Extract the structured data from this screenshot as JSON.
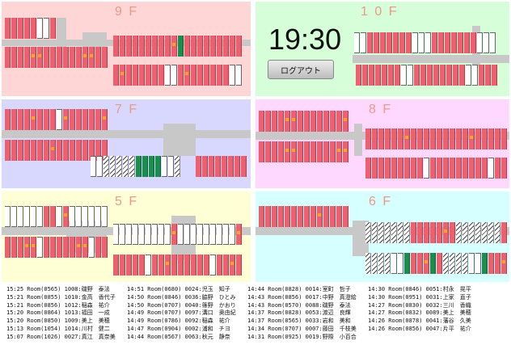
{
  "clock": "19:30",
  "logout_label": "ログアウト",
  "floors": {
    "f9": {
      "label": "9 F",
      "bg": "#ffd6d6"
    },
    "f10": {
      "label": "1 0 F",
      "bg": "#d6ffd9"
    },
    "f7": {
      "label": "7 F",
      "bg": "#d8d8ff"
    },
    "f8": {
      "label": "8 F",
      "bg": "#ffd8ff"
    },
    "f5": {
      "label": "5 F",
      "bg": "#ffffd6"
    },
    "f6": {
      "label": "6 F",
      "bg": "#d6ffff"
    }
  },
  "log": {
    "col1": [
      "15:25 Room(0565) 1008:磯野　泰法",
      "15:21 Room(0855) 1010:金高　香代子",
      "15:21 Room(0856) 1012:稲森　祐介",
      "15:20 Room(0864) 1013:福田　一成",
      "15:20 Room(0850) 1009:美上　美穂",
      "15:13 Room(1054) 1014:川村　健二",
      "15:07 Room(1026) 0027:真江　真奈美"
    ],
    "col2": [
      "14:51 Room(0680) 0024:児玉　知子",
      "14:50 Room(0846) 0036:脇野　ひとみ",
      "14:50 Room(0707) 0040:篠野　かおり",
      "14:49 Room(0707) 0097:溝口　奥由紀",
      "14:49 Room(0786) 0092:稲森　祐介",
      "14:47 Room(0904) 0002:浦和　チヨ",
      "14:44 Room(0567) 0063:秋元　静奈"
    ],
    "col3": [
      "14:44 Room(0828) 0014:室町　哲子",
      "14:43 Room(0856) 0017:中野　真澄絵",
      "14:43 Room(0570) 0088:磯野　泰法",
      "14:37 Room(0828) 0053:渡辺　良輝",
      "14:37 Room(0565) 0033:岩和　美和",
      "14:34 Room(0707) 0007:藤田　千枝美",
      "14:31 Room(0925) 0019:野際　小百合"
    ],
    "col4": [
      "14:30 Room(0846) 0051:村永　晃平",
      "14:30 Room(0951) 0031:上家　直子",
      "14:27 Room(0830) 0032:三川　香織",
      "14:27 Room(0832) 0089:美上　美穂",
      "14:26 Room(0878) 0041:藩谷　久美",
      "14:26 Room(0856) 0047:片平　祐介"
    ]
  }
}
